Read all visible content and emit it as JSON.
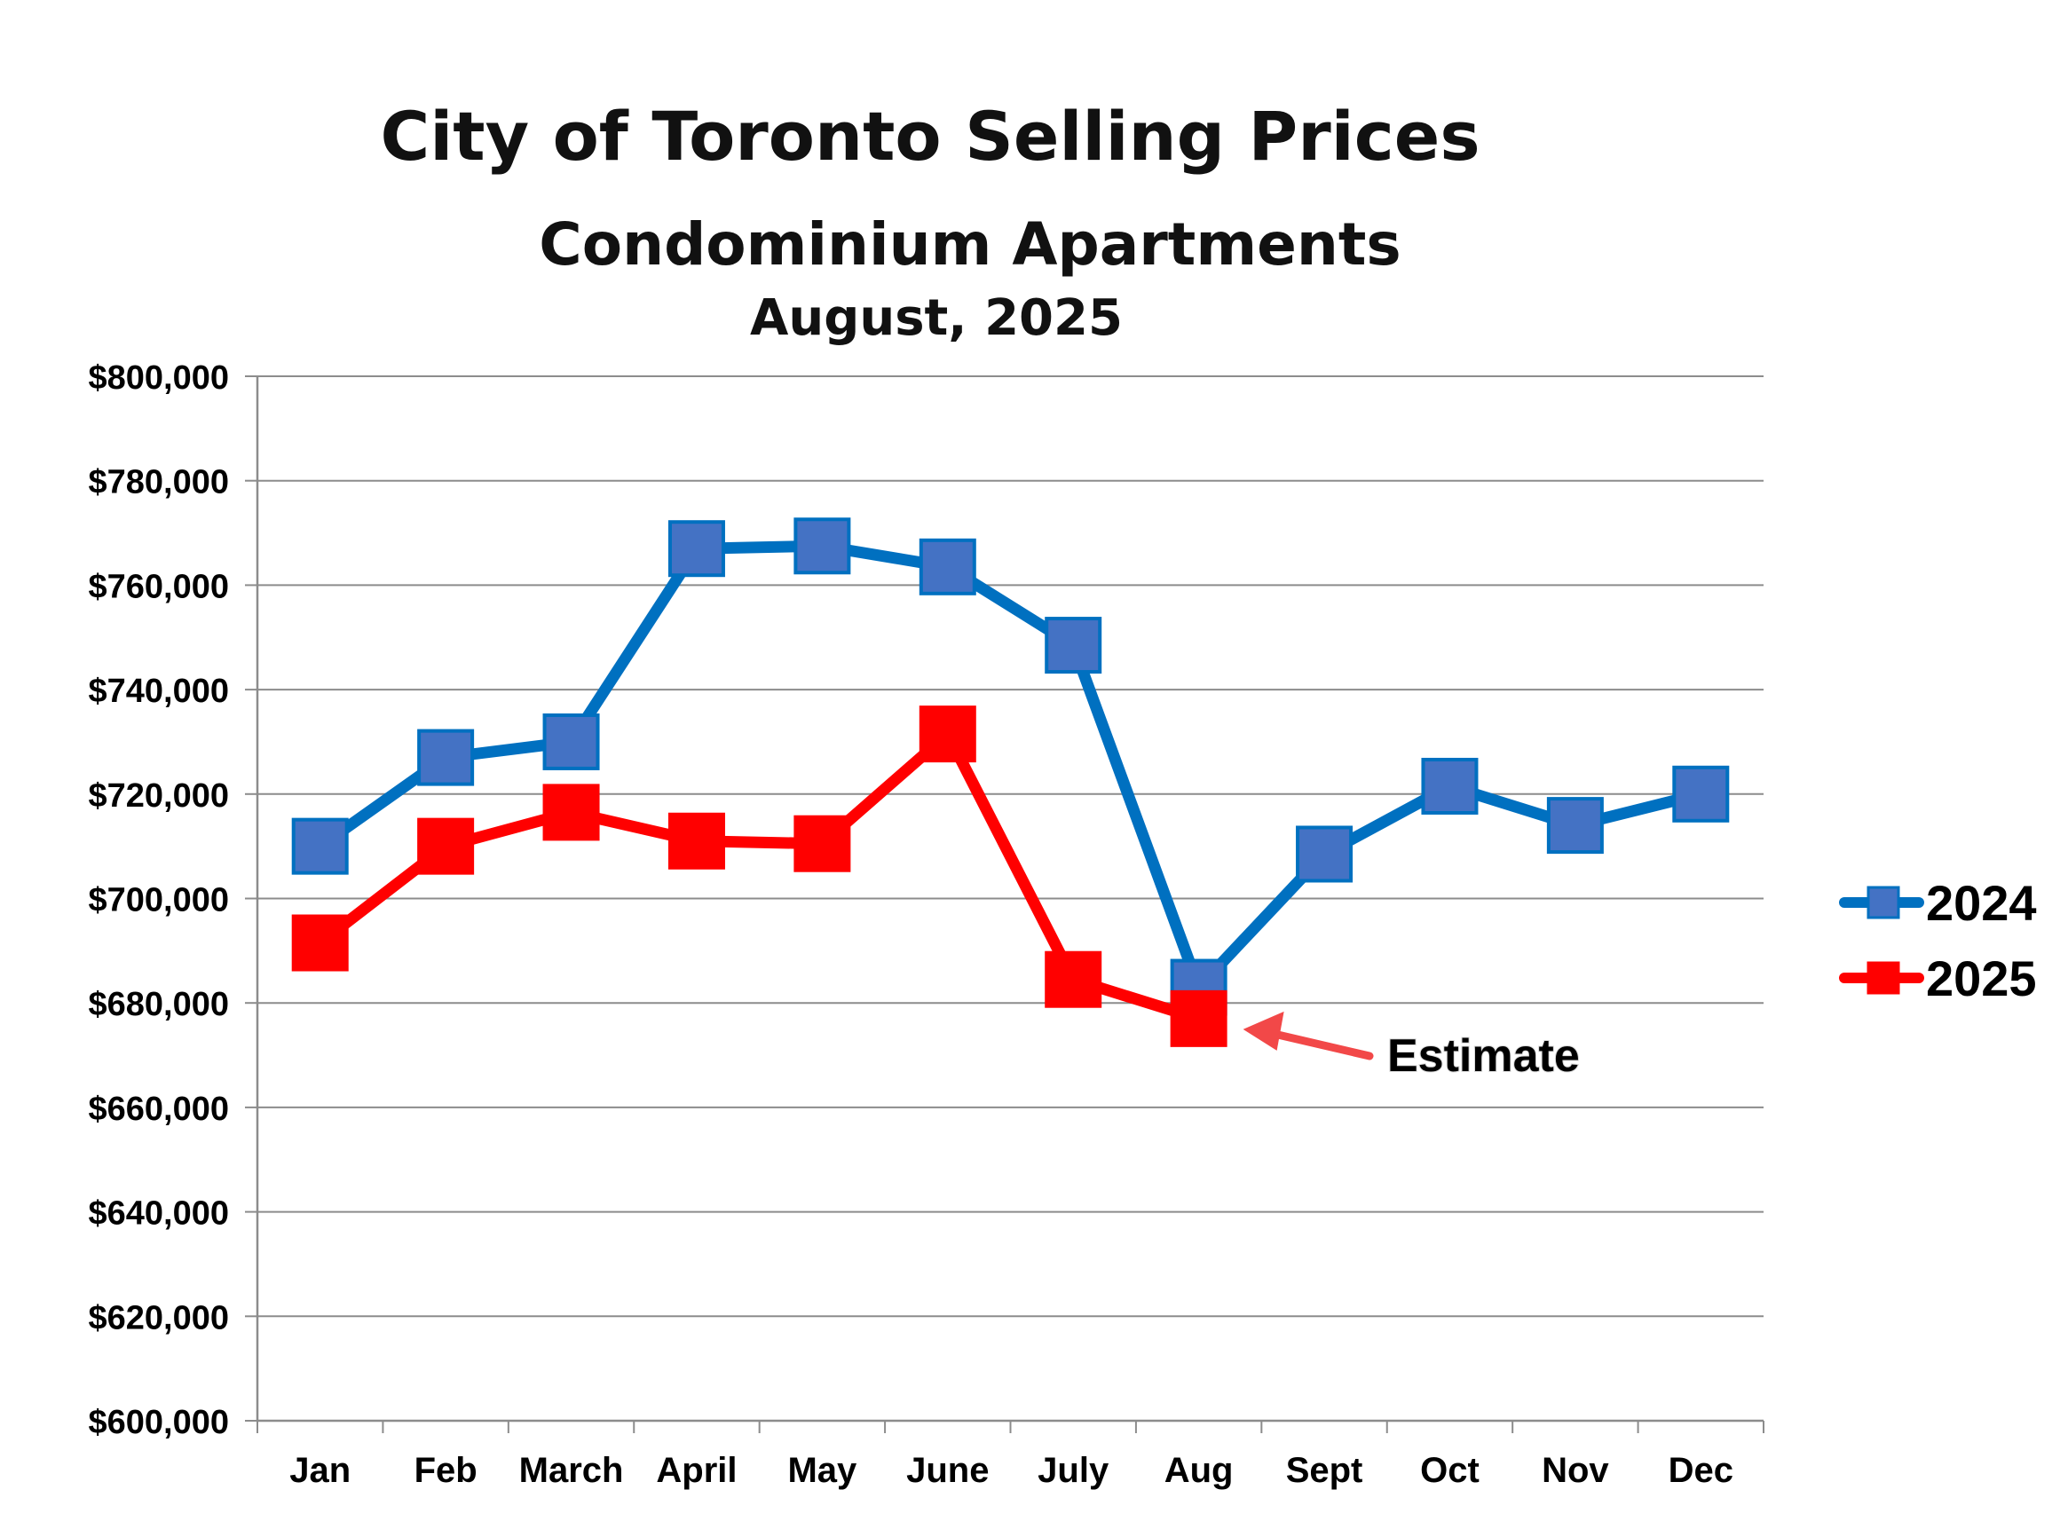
{
  "chart_data": {
    "type": "line",
    "title": "City of Toronto Selling Prices",
    "subtitle": "Condominium Apartments",
    "subtitle2": "August, 2025",
    "xlabel": "",
    "ylabel": "",
    "categories": [
      "Jan",
      "Feb",
      "March",
      "April",
      "May",
      "June",
      "July",
      "Aug",
      "Sept",
      "Oct",
      "Nov",
      "Dec"
    ],
    "ylim": [
      600000,
      800000
    ],
    "ytick_step": 20000,
    "ytick_labels": [
      "$600,000",
      "$620,000",
      "$640,000",
      "$660,000",
      "$680,000",
      "$700,000",
      "$720,000",
      "$740,000",
      "$760,000",
      "$780,000",
      "$800,000"
    ],
    "grid": true,
    "legend_position": "right",
    "series": [
      {
        "name": "2024",
        "color": "#0070C0",
        "marker_color": "#4472C4",
        "values": [
          710000,
          727000,
          730000,
          767000,
          767500,
          763500,
          748500,
          683000,
          708500,
          721500,
          714000,
          720000
        ]
      },
      {
        "name": "2025",
        "color": "#FF0000",
        "marker_color": "#FF0000",
        "values": [
          691500,
          710000,
          716500,
          711000,
          710500,
          731500,
          684500,
          677000,
          null,
          null,
          null,
          null
        ]
      }
    ],
    "annotations": [
      {
        "text": "Estimate",
        "target_category": "Aug",
        "target_series": "2025",
        "arrow_color": "#F24848"
      }
    ]
  }
}
